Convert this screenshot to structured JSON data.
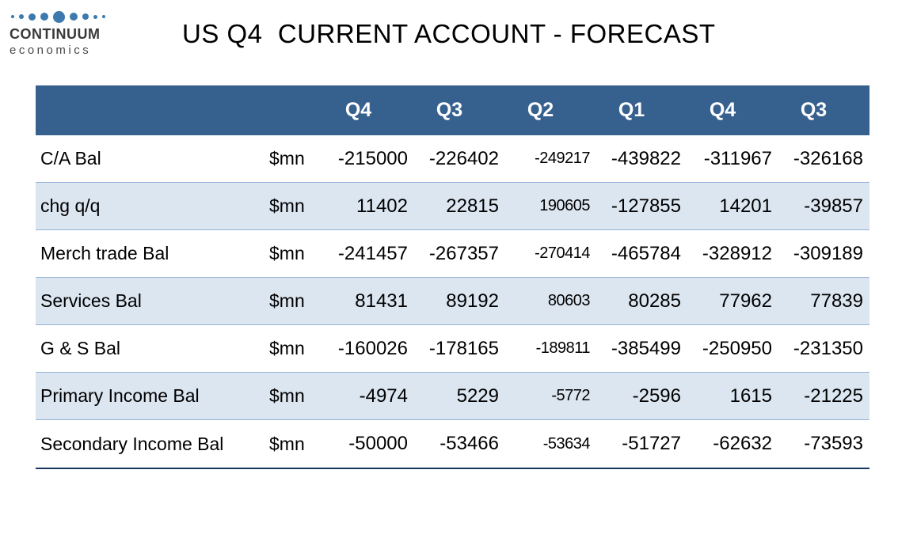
{
  "logo": {
    "line1": "CONTINUUM",
    "line2": "economics"
  },
  "title": "US Q4  CURRENT ACCOUNT - FORECAST",
  "chart_data": {
    "type": "table",
    "title": "US Q4  CURRENT ACCOUNT - FORECAST",
    "header_quarters": [
      "Q4",
      "Q3",
      "Q2",
      "Q1",
      "Q4",
      "Q3"
    ],
    "unit": "$mn",
    "rows": [
      {
        "label": "C/A Bal",
        "unit": "$mn",
        "values": [
          -215000,
          -226402,
          -249217,
          -439822,
          -311967,
          -326168
        ]
      },
      {
        "label": "chg q/q",
        "unit": "$mn",
        "values": [
          11402,
          22815,
          190605,
          -127855,
          14201,
          -39857
        ]
      },
      {
        "label": "Merch trade Bal",
        "unit": "$mn",
        "values": [
          -241457,
          -267357,
          -270414,
          -465784,
          -328912,
          -309189
        ]
      },
      {
        "label": "Services Bal",
        "unit": "$mn",
        "values": [
          81431,
          89192,
          80603,
          80285,
          77962,
          77839
        ]
      },
      {
        "label": "G & S Bal",
        "unit": "$mn",
        "values": [
          -160026,
          -178165,
          -189811,
          -385499,
          -250950,
          -231350
        ]
      },
      {
        "label": "Primary Income Bal",
        "unit": "$mn",
        "values": [
          -4974,
          5229,
          -5772,
          -2596,
          1615,
          -21225
        ]
      },
      {
        "label": "Secondary Income Bal",
        "unit": "$mn",
        "values": [
          -50000,
          -53466,
          -53634,
          -51727,
          -62632,
          -73593
        ]
      }
    ]
  },
  "colors": {
    "header_bg": "#36618f",
    "header_text": "#ffffff",
    "row_alt_bg": "#dce6f1",
    "row_border": "#95b3d7",
    "bottom_border": "#17375e",
    "logo_blue": "#3c79ad",
    "logo_text": "#3a3a3a"
  }
}
